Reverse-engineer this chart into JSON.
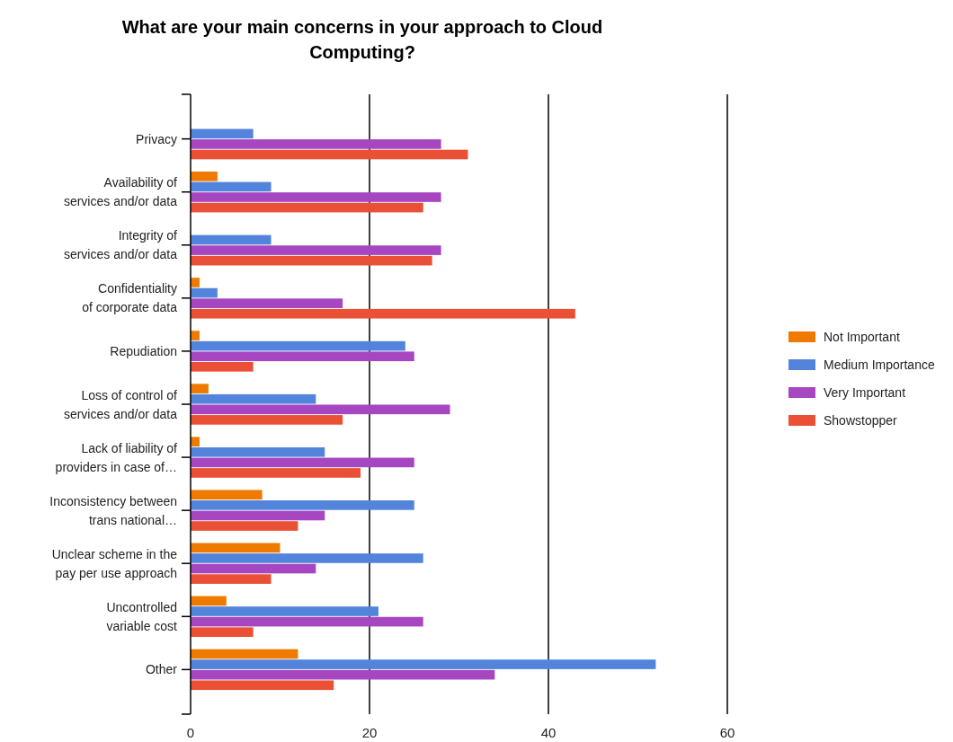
{
  "chart_data": {
    "type": "bar",
    "orientation": "horizontal",
    "title": "What are your main concerns in your approach to Cloud Computing?",
    "categories": [
      "Privacy",
      "Availability of services and/or data",
      "Integrity of services and/or data",
      "Confidentiality of corporate data",
      "Repudiation",
      "Loss of control of services and/or data",
      "Lack of liability of providers in case of…",
      "Inconsistency between trans national…",
      "Unclear scheme in the pay per use approach",
      "Uncontrolled variable cost",
      "Other"
    ],
    "series": [
      {
        "name": "Not Important",
        "color": "#ee7b00",
        "values": [
          0,
          3,
          0,
          1,
          1,
          2,
          1,
          8,
          10,
          4,
          12
        ]
      },
      {
        "name": "Medium Importance",
        "color": "#5284dc",
        "values": [
          7,
          9,
          9,
          3,
          24,
          14,
          15,
          25,
          26,
          21,
          52
        ]
      },
      {
        "name": "Very Important",
        "color": "#a646c0",
        "values": [
          28,
          28,
          28,
          17,
          25,
          29,
          25,
          15,
          14,
          26,
          34
        ]
      },
      {
        "name": "Showstopper",
        "color": "#ea5035",
        "values": [
          31,
          26,
          27,
          43,
          7,
          17,
          19,
          12,
          9,
          7,
          16
        ]
      }
    ],
    "xlim": [
      0,
      60
    ],
    "xticks": [
      0,
      20,
      40,
      60
    ],
    "grid": "x",
    "legend": "right"
  }
}
